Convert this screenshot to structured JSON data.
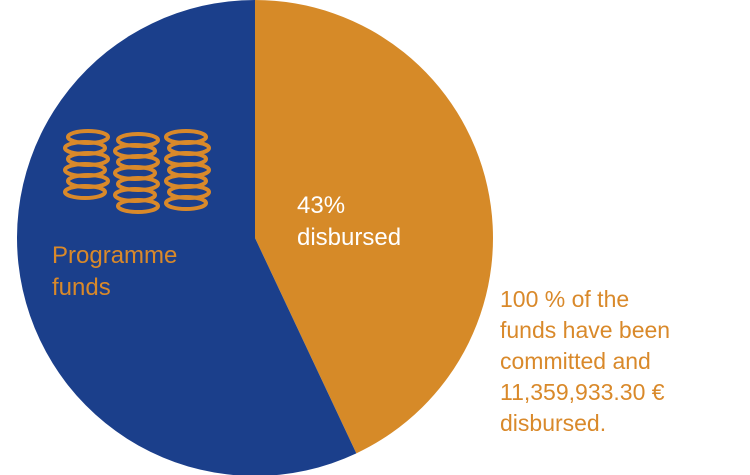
{
  "chart_data": {
    "type": "pie",
    "title": "",
    "slices": [
      {
        "label": "Programme funds",
        "value": 57,
        "color": "#1b3f8b"
      },
      {
        "label": "43% disbursed",
        "value": 43,
        "color": "#d68a28"
      }
    ],
    "legend": "none",
    "start_angle": "12 o'clock, clockwise"
  },
  "labels": {
    "programme_line1": "Programme",
    "programme_line2": "funds",
    "disbursed_line1": "43%",
    "disbursed_line2": "disbursed"
  },
  "note": {
    "line1": "100 % of the",
    "line2": "funds have been",
    "line3": "committed and",
    "line4": "11,359,933.30 €",
    "line5": "disbursed."
  },
  "icon": {
    "name": "coin-stack-icon",
    "color": "#d9892a"
  },
  "colors": {
    "programme": "#1b3f8b",
    "disbursed": "#d68a28",
    "text_orange": "#d9892a",
    "text_white": "#ffffff"
  }
}
